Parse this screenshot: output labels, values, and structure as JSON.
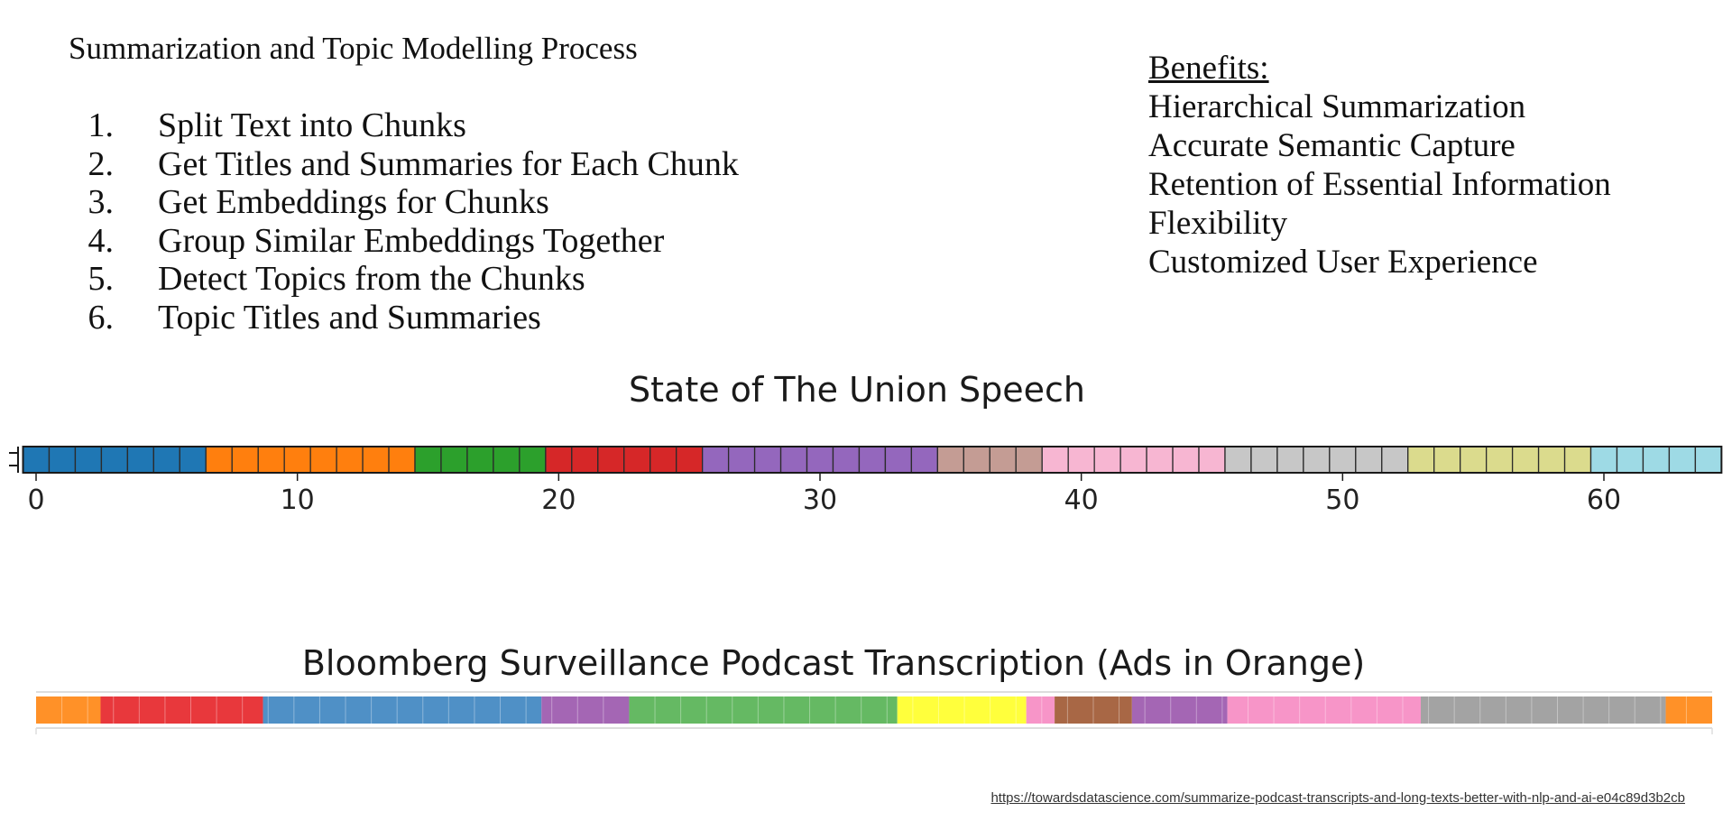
{
  "process": {
    "title": "Summarization and Topic Modelling Process",
    "steps": [
      {
        "num": "1.",
        "text": "Split Text into Chunks"
      },
      {
        "num": "2.",
        "text": "Get Titles and Summaries for Each Chunk"
      },
      {
        "num": "3.",
        "text": "Get Embeddings for Chunks"
      },
      {
        "num": "4.",
        "text": "Group Similar Embeddings Together"
      },
      {
        "num": "5.",
        "text": "Detect Topics from the Chunks"
      },
      {
        "num": "6.",
        "text": "Topic Titles and Summaries"
      }
    ]
  },
  "benefits": {
    "header": "Benefits:",
    "items": [
      "Hierarchical Summarization",
      "Accurate Semantic Capture",
      "Retention of Essential Information",
      "Flexibility",
      "Customized User Experience"
    ]
  },
  "source_link": "https://towardsdatascience.com/summarize-podcast-transcripts-and-long-texts-better-with-nlp-and-ai-e04c89d3b2cb",
  "chart_data": [
    {
      "type": "heatmap",
      "title": "State of The Union Speech",
      "xlim": [
        -1,
        65
      ],
      "xticks": [
        0,
        10,
        20,
        30,
        40,
        50,
        60
      ],
      "xtick_labels": [
        "0",
        "10",
        "20",
        "30",
        "40",
        "50",
        "60"
      ],
      "segments": [
        {
          "topic": 1,
          "start": -0.5,
          "end": 6.5,
          "color": "#1f77b4"
        },
        {
          "topic": 2,
          "start": 6.5,
          "end": 14.5,
          "color": "#ff7f0e"
        },
        {
          "topic": 3,
          "start": 14.5,
          "end": 19.5,
          "color": "#2ca02c"
        },
        {
          "topic": 4,
          "start": 19.5,
          "end": 25.5,
          "color": "#d62728"
        },
        {
          "topic": 5,
          "start": 25.5,
          "end": 34.5,
          "color": "#9467bd"
        },
        {
          "topic": 6,
          "start": 34.5,
          "end": 38.5,
          "color": "#c49c94"
        },
        {
          "topic": 7,
          "start": 38.5,
          "end": 45.5,
          "color": "#f7b6d2"
        },
        {
          "topic": 8,
          "start": 45.5,
          "end": 52.5,
          "color": "#c7c7c7"
        },
        {
          "topic": 9,
          "start": 52.5,
          "end": 59.5,
          "color": "#dbdb8d"
        },
        {
          "topic": 10,
          "start": 59.5,
          "end": 64.5,
          "color": "#9edae5"
        }
      ]
    },
    {
      "type": "heatmap",
      "title": "Bloomberg Surveillance Podcast Transcription (Ads in Orange)",
      "xlim": [
        0,
        65
      ],
      "segments": [
        {
          "topic": "ad",
          "start": 0,
          "end": 2.5,
          "color": "#ff9128"
        },
        {
          "topic": 1,
          "start": 2.5,
          "end": 8.8,
          "color": "#e8383c"
        },
        {
          "topic": 2,
          "start": 8.8,
          "end": 19.6,
          "color": "#4f90c6"
        },
        {
          "topic": 3,
          "start": 19.6,
          "end": 23.0,
          "color": "#a466b4"
        },
        {
          "topic": 4,
          "start": 23.0,
          "end": 33.4,
          "color": "#65b963"
        },
        {
          "topic": 5,
          "start": 33.4,
          "end": 38.4,
          "color": "#ffff3c"
        },
        {
          "topic": 6,
          "start": 38.4,
          "end": 39.5,
          "color": "#f795c8"
        },
        {
          "topic": 7,
          "start": 39.5,
          "end": 42.5,
          "color": "#a86745"
        },
        {
          "topic": 8,
          "start": 42.5,
          "end": 46.2,
          "color": "#a466b4"
        },
        {
          "topic": 9,
          "start": 46.2,
          "end": 53.7,
          "color": "#f795c8"
        },
        {
          "topic": 10,
          "start": 53.7,
          "end": 63.2,
          "color": "#a3a3a3"
        },
        {
          "topic": "ad",
          "start": 63.2,
          "end": 65.0,
          "color": "#ff9128"
        }
      ]
    }
  ]
}
